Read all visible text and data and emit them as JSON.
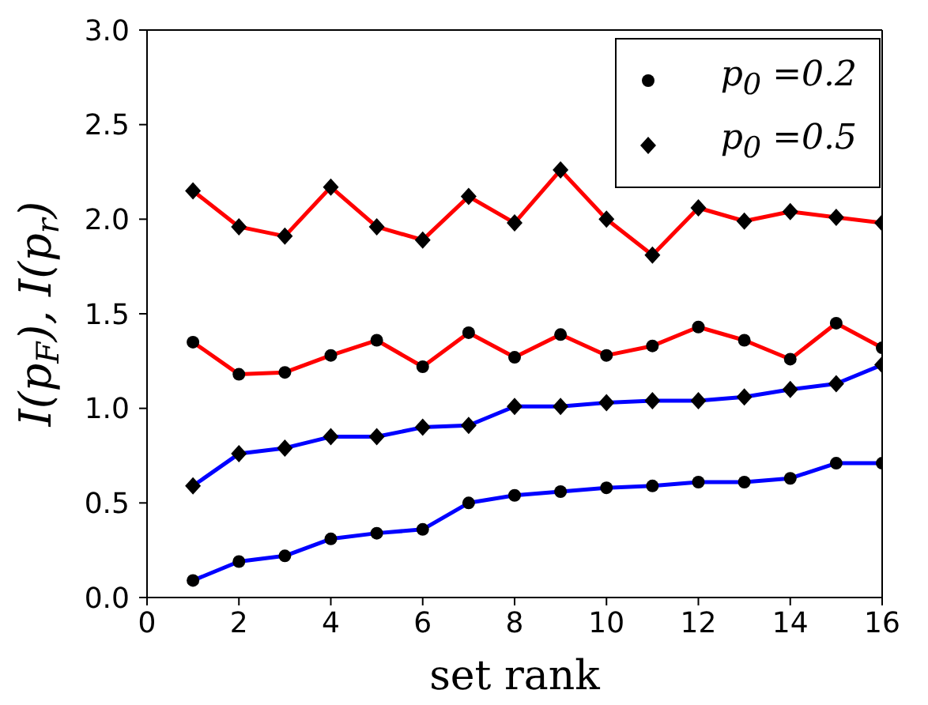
{
  "chart_data": {
    "type": "line",
    "x": [
      1,
      2,
      3,
      4,
      5,
      6,
      7,
      8,
      9,
      10,
      11,
      12,
      13,
      14,
      15,
      16
    ],
    "xlabel": "set rank",
    "ylabel": "I(p$_{F}$), I(p$_{r}$)",
    "xlim": [
      0,
      16
    ],
    "xticks": [
      0,
      2,
      4,
      6,
      8,
      10,
      12,
      14,
      16
    ],
    "ylim": [
      0,
      3
    ],
    "yticks": [
      {
        "value": 0,
        "label": "0.0"
      },
      {
        "value": 0.5,
        "label": "0.5"
      },
      {
        "value": 1,
        "label": "1.0"
      },
      {
        "value": 1.5,
        "label": "1.5"
      },
      {
        "value": 2,
        "label": "2.0"
      },
      {
        "value": 2.5,
        "label": "2.5"
      },
      {
        "value": 3,
        "label": "3.0"
      }
    ],
    "grid": false,
    "legend": "top right",
    "series": [
      {
        "name": "p$_{0}$ =0.2",
        "color": "#ff0000",
        "marker": "circle",
        "values": [
          1.35,
          1.18,
          1.19,
          1.28,
          1.36,
          1.22,
          1.4,
          1.27,
          1.39,
          1.28,
          1.33,
          1.43,
          1.36,
          1.26,
          1.45,
          1.32
        ]
      },
      {
        "name": "p$_{0}$ =0.5",
        "color": "#ff0000",
        "marker": "diamond",
        "values": [
          2.15,
          1.96,
          1.91,
          2.17,
          1.96,
          1.89,
          2.12,
          1.98,
          2.26,
          2.0,
          1.81,
          2.06,
          1.99,
          2.04,
          2.01,
          1.98
        ]
      },
      {
        "color": "#0000ff",
        "marker": "diamond",
        "values": [
          0.59,
          0.76,
          0.79,
          0.85,
          0.85,
          0.9,
          0.91,
          1.01,
          1.01,
          1.03,
          1.04,
          1.04,
          1.06,
          1.1,
          1.13,
          1.23
        ]
      },
      {
        "color": "#0000ff",
        "marker": "circle",
        "values": [
          0.09,
          0.19,
          0.22,
          0.31,
          0.34,
          0.36,
          0.5,
          0.54,
          0.56,
          0.58,
          0.59,
          0.61,
          0.61,
          0.63,
          0.71,
          0.71
        ]
      }
    ]
  }
}
